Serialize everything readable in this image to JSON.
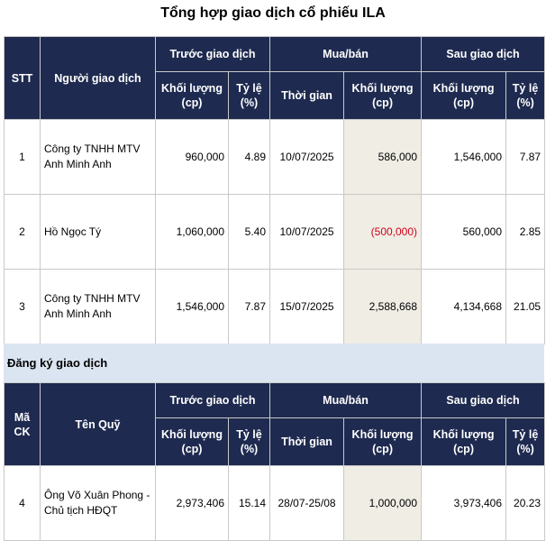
{
  "title": "Tổng hợp giao dịch cổ phiếu ILA",
  "table1": {
    "headers": {
      "stt": "STT",
      "trader": "Người giao dịch",
      "before": "Trước giao dịch",
      "trade": "Mua/bán",
      "after": "Sau giao dịch",
      "volume": "Khối lượng (cp)",
      "ratio": "Tỷ lệ (%)",
      "time": "Thời gian"
    },
    "rows": [
      {
        "stt": "1",
        "name": "Công ty TNHH MTV Anh Minh Anh",
        "before_vol": "960,000",
        "before_ratio": "4.89",
        "time": "10/07/2025",
        "trade_vol": "586,000",
        "after_vol": "1,546,000",
        "after_ratio": "7.87"
      },
      {
        "stt": "2",
        "name": "Hồ Ngọc Tý",
        "before_vol": "1,060,000",
        "before_ratio": "5.40",
        "time": "10/07/2025",
        "trade_vol": "(500,000)",
        "after_vol": "560,000",
        "after_ratio": "2.85"
      },
      {
        "stt": "3",
        "name": "Công ty TNHH MTV Anh Minh Anh",
        "before_vol": "1,546,000",
        "before_ratio": "7.87",
        "time": "15/07/2025",
        "trade_vol": "2,588,668",
        "after_vol": "4,134,668",
        "after_ratio": "21.05"
      }
    ]
  },
  "section_label": "Đăng ký giao dịch",
  "table2": {
    "headers": {
      "code": "Mã CK",
      "fund": "Tên Quỹ",
      "before": "Trước giao dịch",
      "trade": "Mua/bán",
      "after": "Sau giao dịch",
      "volume": "Khối lượng (cp)",
      "ratio": "Tỷ lệ (%)",
      "time": "Thời gian"
    },
    "rows": [
      {
        "stt": "4",
        "name": "Ông Võ Xuân Phong - Chủ tịch HĐQT",
        "before_vol": "2,973,406",
        "before_ratio": "15.14",
        "time": "28/07-25/08",
        "trade_vol": "1,000,000",
        "after_vol": "3,973,406",
        "after_ratio": "20.23"
      }
    ]
  },
  "colors": {
    "header_bg": "#1e2a4f",
    "highlight": "#efede4",
    "negative": "#d0021b",
    "section_bg": "#dbe5f1"
  }
}
